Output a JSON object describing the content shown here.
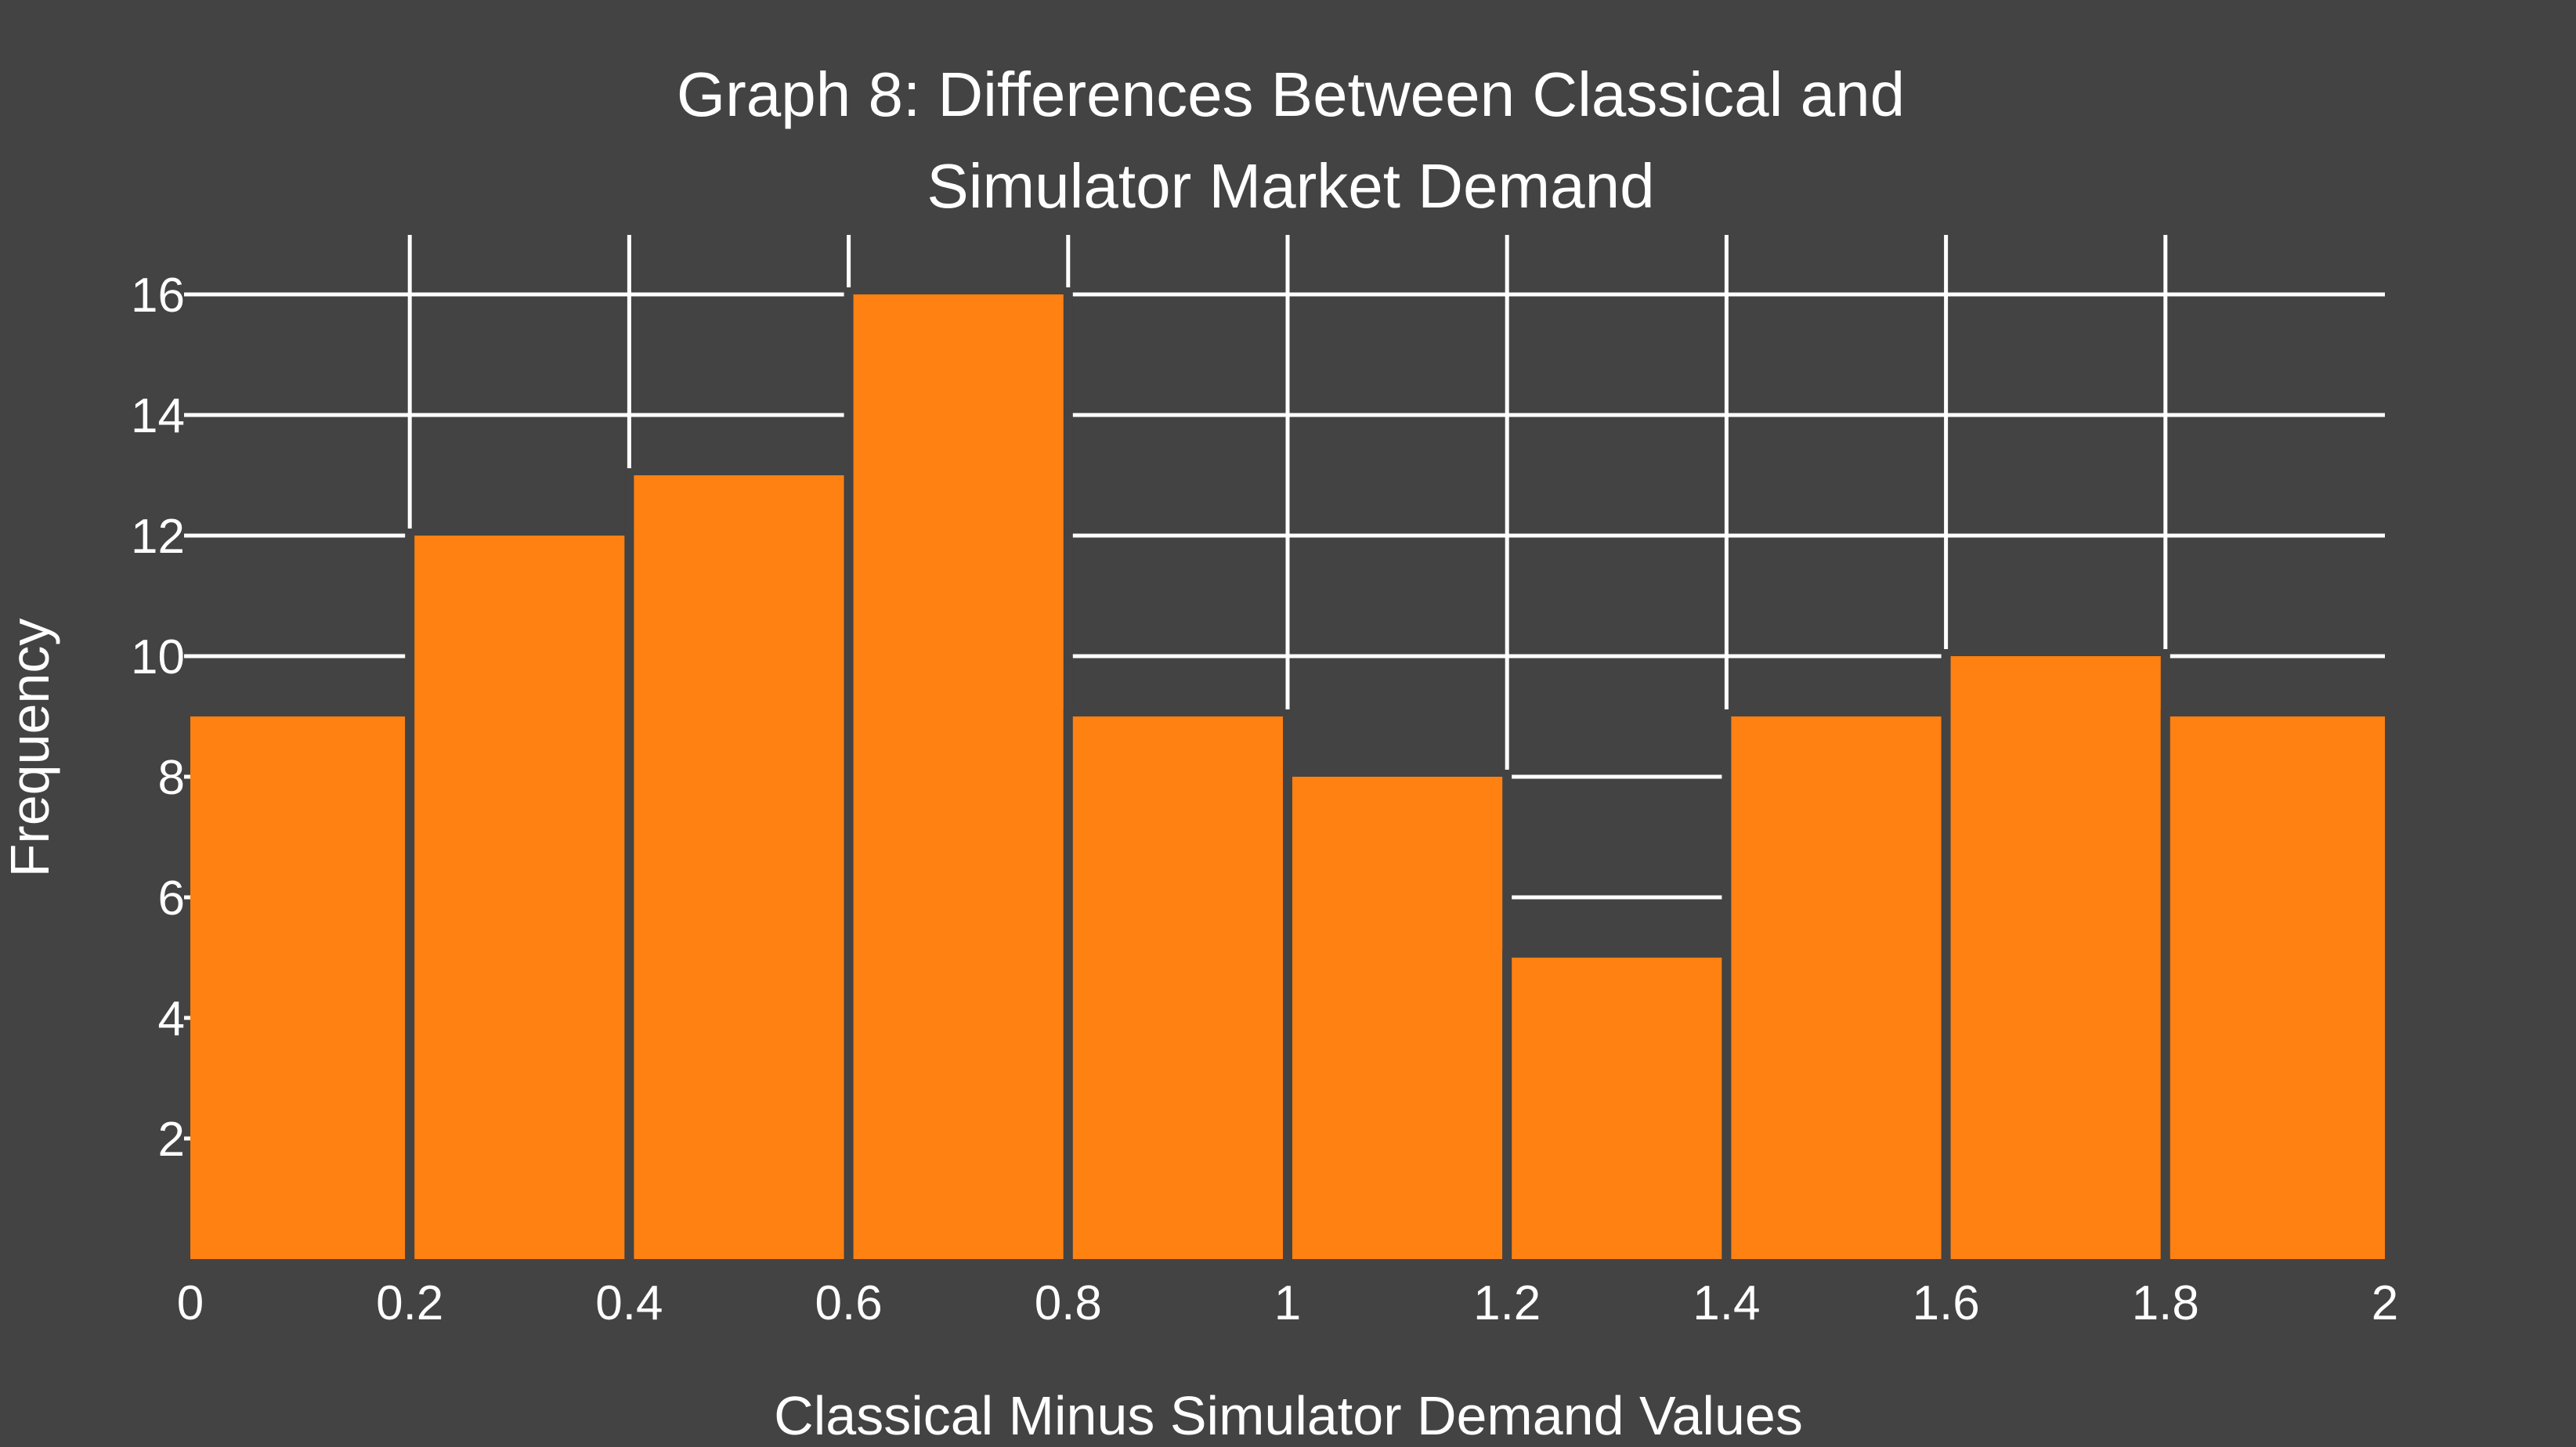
{
  "chart_data": {
    "type": "bar",
    "title_lines": [
      "Graph 8: Differences Between Classical and",
      "Simulator Market Demand"
    ],
    "xlabel": "Classical Minus Simulator Demand Values",
    "ylabel": "Frequency",
    "bin_edges": [
      0,
      0.2,
      0.4,
      0.6,
      0.8,
      1,
      1.2,
      1.4,
      1.6,
      1.8,
      2
    ],
    "x_tick_labels": [
      "0",
      "0.2",
      "0.4",
      "0.6",
      "0.8",
      "1",
      "1.2",
      "1.4",
      "1.6",
      "1.8",
      "2"
    ],
    "values": [
      9,
      12,
      13,
      16,
      9,
      8,
      5,
      9,
      10,
      9
    ],
    "y_ticks": [
      2,
      4,
      6,
      8,
      10,
      12,
      14,
      16
    ],
    "y_tick_labels": [
      "2",
      "4",
      "6",
      "8",
      "10",
      "12",
      "14",
      "16"
    ],
    "xlim": [
      0,
      2
    ],
    "ylim": [
      0,
      16
    ],
    "grid": true,
    "colors": {
      "bar": "#FF8112",
      "background": "#434343",
      "grid": "#FFFFFF",
      "text": "#FFFFFF"
    }
  }
}
